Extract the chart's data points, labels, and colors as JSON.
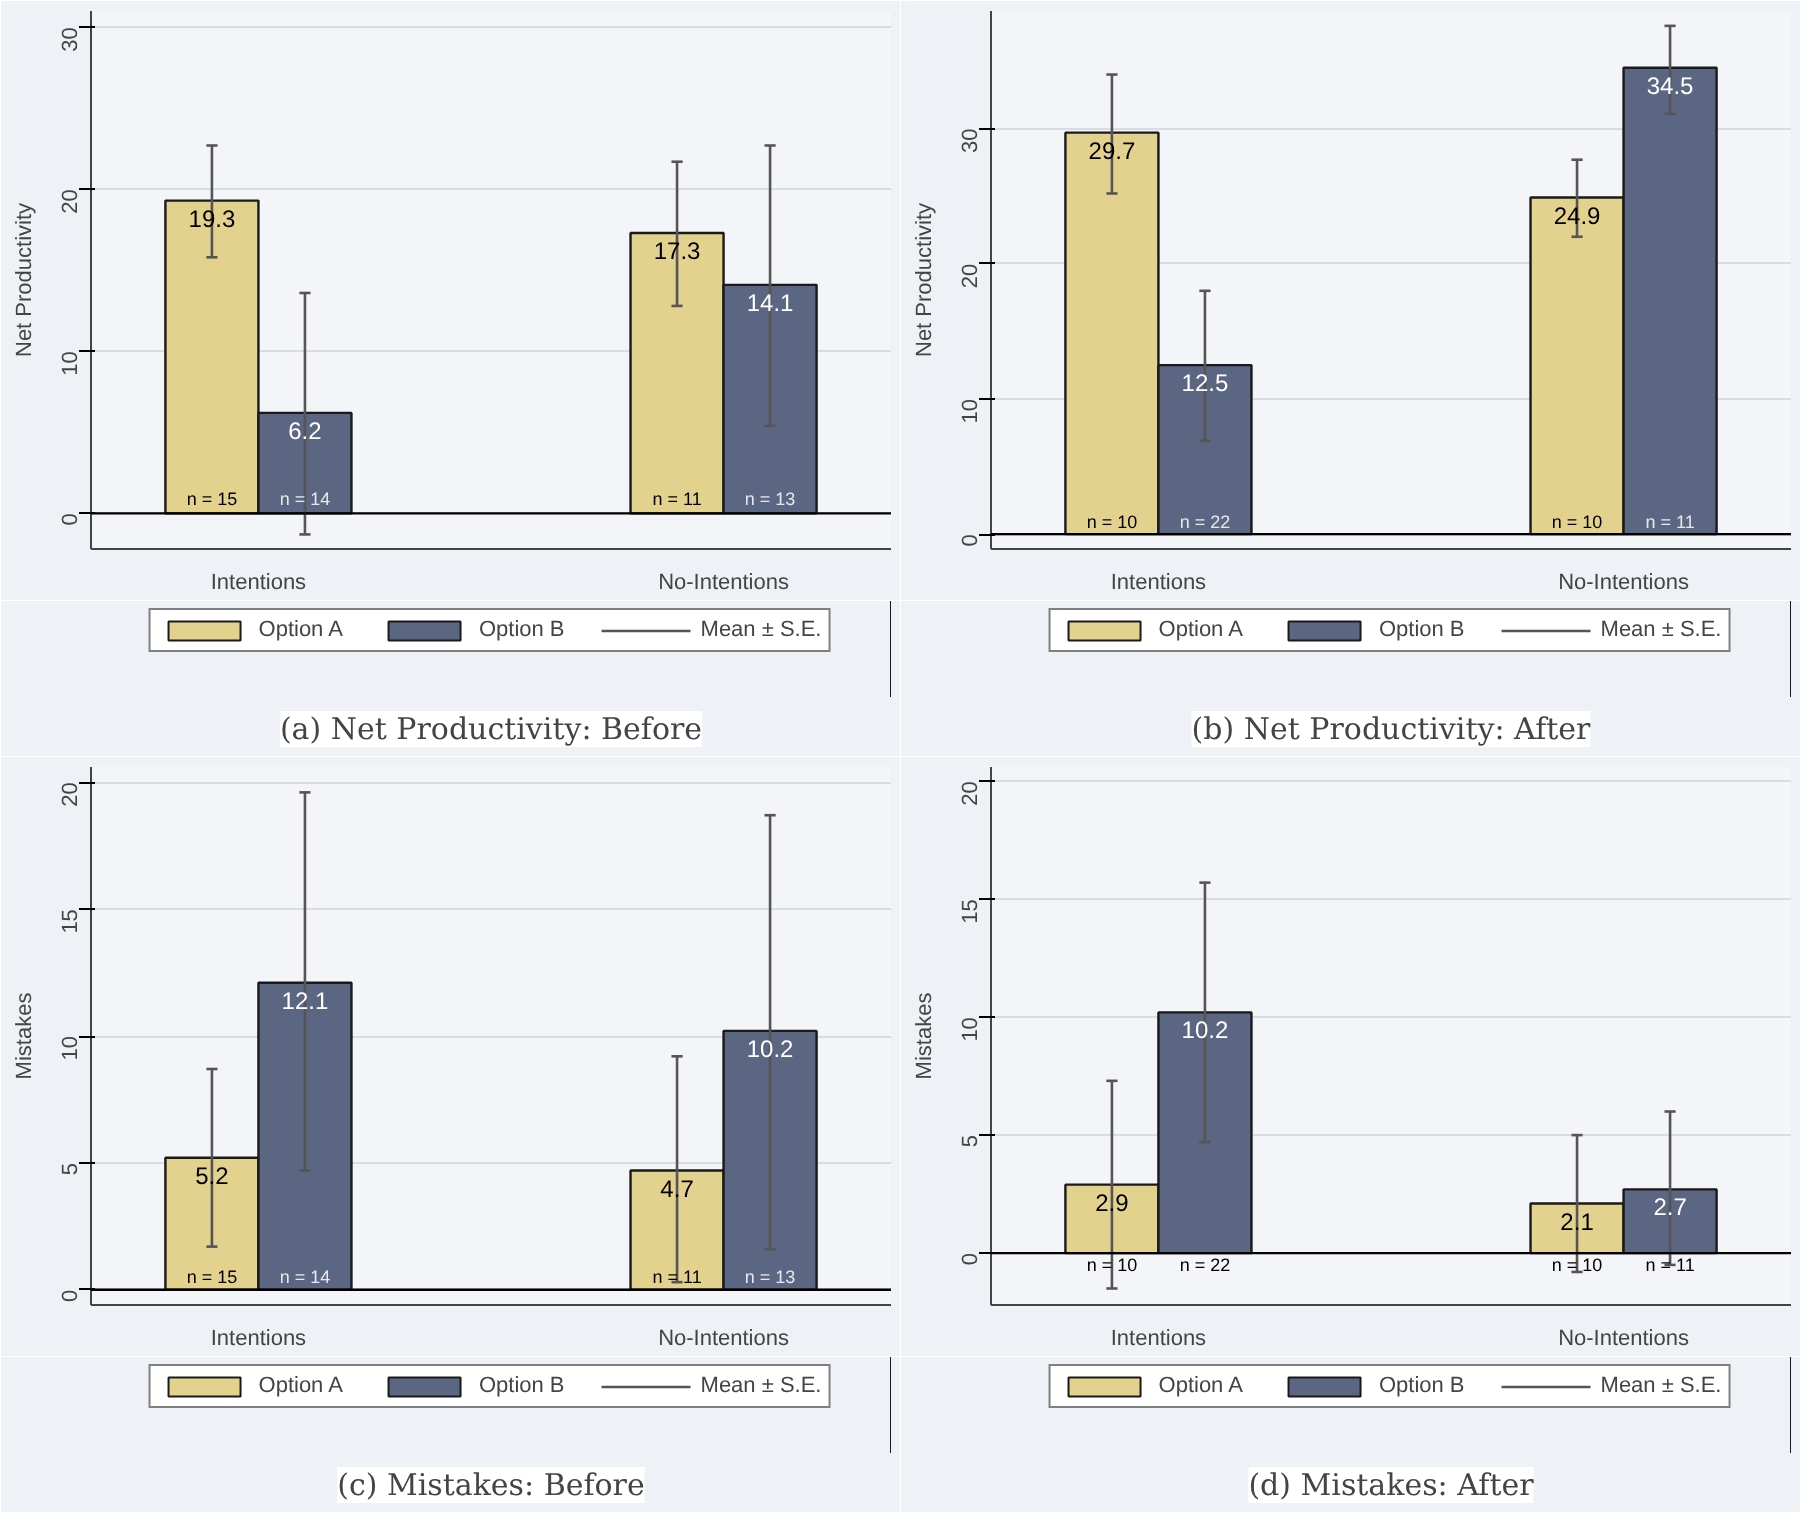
{
  "chart_data": [
    {
      "type": "bar",
      "title": "(a) Net Productivity: Before",
      "ylabel": "Net Productivity",
      "categories": [
        "Intentions",
        "No-Intentions"
      ],
      "series": [
        {
          "name": "Option A",
          "color": "#e3d28e",
          "values": [
            19.3,
            17.3
          ],
          "errors": [
            [
              15.8,
              22.7
            ],
            [
              12.8,
              21.7
            ]
          ]
        },
        {
          "name": "Option B",
          "color": "#5b6682",
          "values": [
            6.2,
            14.1
          ],
          "errors": [
            [
              -1.3,
              13.6
            ],
            [
              5.4,
              22.7
            ]
          ]
        }
      ],
      "ylim": [
        -2.2,
        31
      ],
      "yticks": [
        0,
        10,
        20,
        30
      ],
      "grid": "y",
      "legend": "bottom",
      "data_labels": true,
      "ref_lines": [
        {
          "axis": "y",
          "value": 0
        }
      ],
      "annotations": [
        "Mean ± S.E.",
        {
          "text": "n = 15",
          "x": "Intentions",
          "y": 0.9
        },
        {
          "text": "n = 14",
          "x": "Intentions",
          "y": 0.9
        },
        {
          "text": "n = 11",
          "x": "No-Intentions",
          "y": 0.9
        },
        {
          "text": "n = 13",
          "x": "No-Intentions",
          "y": 0.9
        }
      ]
    },
    {
      "type": "bar",
      "title": "(b) Net Productivity: After",
      "ylabel": "Net Productivity",
      "categories": [
        "Intentions",
        "No-Intentions"
      ],
      "series": [
        {
          "name": "Option A",
          "color": "#e3d28e",
          "values": [
            29.7,
            24.9
          ],
          "errors": [
            [
              25.2,
              34.0
            ],
            [
              22.0,
              27.7
            ]
          ]
        },
        {
          "name": "Option B",
          "color": "#5b6682",
          "values": [
            12.5,
            34.5
          ],
          "errors": [
            [
              6.9,
              18.0
            ],
            [
              31.1,
              37.6
            ]
          ]
        }
      ],
      "ylim": [
        -1.1,
        38.7
      ],
      "yticks": [
        0,
        10,
        20,
        30
      ],
      "grid": "y",
      "legend": "bottom",
      "data_labels": true,
      "ref_lines": [
        {
          "axis": "y",
          "value": 0
        }
      ],
      "annotations": [
        "Mean ± S.E.",
        {
          "text": "n = 10",
          "x": "Intentions",
          "y": 0.9
        },
        {
          "text": "n = 22",
          "x": "Intentions",
          "y": 0.9
        },
        {
          "text": "n = 10",
          "x": "No-Intentions",
          "y": 0.9
        },
        {
          "text": "n = 11",
          "x": "No-Intentions",
          "y": 0.9
        }
      ]
    },
    {
      "type": "bar",
      "title": "(c) Mistakes: Before",
      "ylabel": "Mistakes",
      "categories": [
        "Intentions",
        "No-Intentions"
      ],
      "series": [
        {
          "name": "Option A",
          "color": "#e3d28e",
          "values": [
            5.2,
            4.7
          ],
          "errors": [
            [
              1.7,
              8.7
            ],
            [
              0.3,
              9.2
            ]
          ]
        },
        {
          "name": "Option B",
          "color": "#5b6682",
          "values": [
            12.1,
            10.2
          ],
          "errors": [
            [
              4.7,
              19.6
            ],
            [
              1.6,
              18.7
            ]
          ]
        }
      ],
      "ylim": [
        -0.6,
        20.6
      ],
      "yticks": [
        0,
        5,
        10,
        15,
        20
      ],
      "grid": "y",
      "legend": "bottom",
      "data_labels": true,
      "ref_lines": [
        {
          "axis": "y",
          "value": 0
        }
      ],
      "annotations": [
        "Mean ± S.E.",
        {
          "text": "n = 15",
          "x": "Intentions",
          "y": 0.5
        },
        {
          "text": "n = 14",
          "x": "Intentions",
          "y": 0.5
        },
        {
          "text": "n = 11",
          "x": "No-Intentions",
          "y": 0.5
        },
        {
          "text": "n = 13",
          "x": "No-Intentions",
          "y": 0.5
        }
      ]
    },
    {
      "type": "bar",
      "title": "(d) Mistakes: After",
      "ylabel": "Mistakes",
      "categories": [
        "Intentions",
        "No-Intentions"
      ],
      "series": [
        {
          "name": "Option A",
          "color": "#e3d28e",
          "values": [
            2.9,
            2.1
          ],
          "errors": [
            [
              -1.5,
              7.3
            ],
            [
              -0.8,
              5.0
            ]
          ]
        },
        {
          "name": "Option B",
          "color": "#5b6682",
          "values": [
            10.2,
            2.7
          ],
          "errors": [
            [
              4.7,
              15.7
            ],
            [
              -0.5,
              6.0
            ]
          ]
        }
      ],
      "ylim": [
        -2.2,
        20.6
      ],
      "yticks": [
        0,
        5,
        10,
        15,
        20
      ],
      "grid": "y",
      "legend": "bottom",
      "data_labels": true,
      "ref_lines": [
        {
          "axis": "y",
          "value": 0
        }
      ],
      "annotations": [
        "Mean ± S.E.",
        {
          "text": "n = 10",
          "x": "Intentions",
          "y": -0.5
        },
        {
          "text": "n = 22",
          "x": "Intentions",
          "y": -0.5
        },
        {
          "text": "n = 10",
          "x": "No-Intentions",
          "y": -0.5
        },
        {
          "text": "n = 11",
          "x": "No-Intentions",
          "y": -0.5
        }
      ]
    }
  ]
}
